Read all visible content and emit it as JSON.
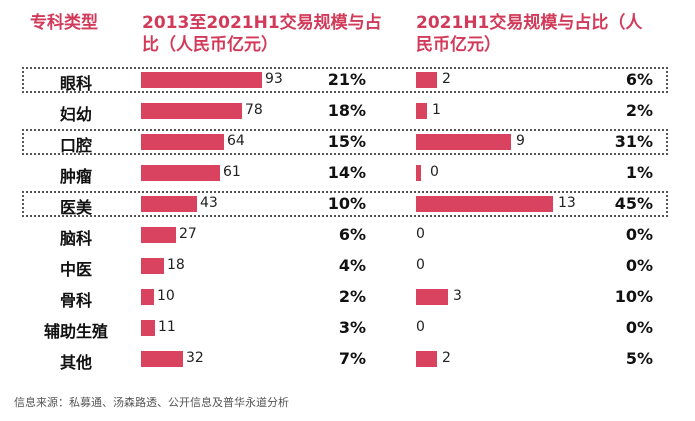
{
  "headers": {
    "category": "专科类型",
    "col1": "2013至2021H1交易规模与占比（人民币亿元）",
    "col2": "2021H1交易规模与占比（人民币亿元）"
  },
  "source": "信息来源：私募通、汤森路透、公开信息及普华永道分析",
  "colors": {
    "bar": "#d9435f",
    "header": "#d23a5a"
  },
  "chart_data": [
    {
      "type": "bar",
      "orientation": "horizontal",
      "title": "2013至2021H1交易规模与占比（人民币亿元）",
      "categories": [
        "眼科",
        "妇幼",
        "口腔",
        "肿瘤",
        "医美",
        "脑科",
        "中医",
        "骨科",
        "辅助生殖",
        "其他"
      ],
      "values": [
        93,
        78,
        64,
        61,
        43,
        27,
        18,
        10,
        11,
        32
      ],
      "shares": [
        "21%",
        "18%",
        "15%",
        "14%",
        "10%",
        "6%",
        "4%",
        "2%",
        "3%",
        "7%"
      ],
      "highlighted": [
        "眼科",
        "口腔",
        "医美"
      ]
    },
    {
      "type": "bar",
      "orientation": "horizontal",
      "title": "2021H1交易规模与占比（人民币亿元）",
      "categories": [
        "眼科",
        "妇幼",
        "口腔",
        "肿瘤",
        "医美",
        "脑科",
        "中医",
        "骨科",
        "辅助生殖",
        "其他"
      ],
      "values": [
        2,
        1,
        9,
        0,
        13,
        0,
        0,
        3,
        0,
        2
      ],
      "shares": [
        "6%",
        "2%",
        "31%",
        "1%",
        "45%",
        "0%",
        "0%",
        "10%",
        "0%",
        "5%"
      ],
      "bar_visible": [
        true,
        true,
        true,
        true,
        true,
        false,
        false,
        true,
        false,
        true
      ]
    }
  ]
}
